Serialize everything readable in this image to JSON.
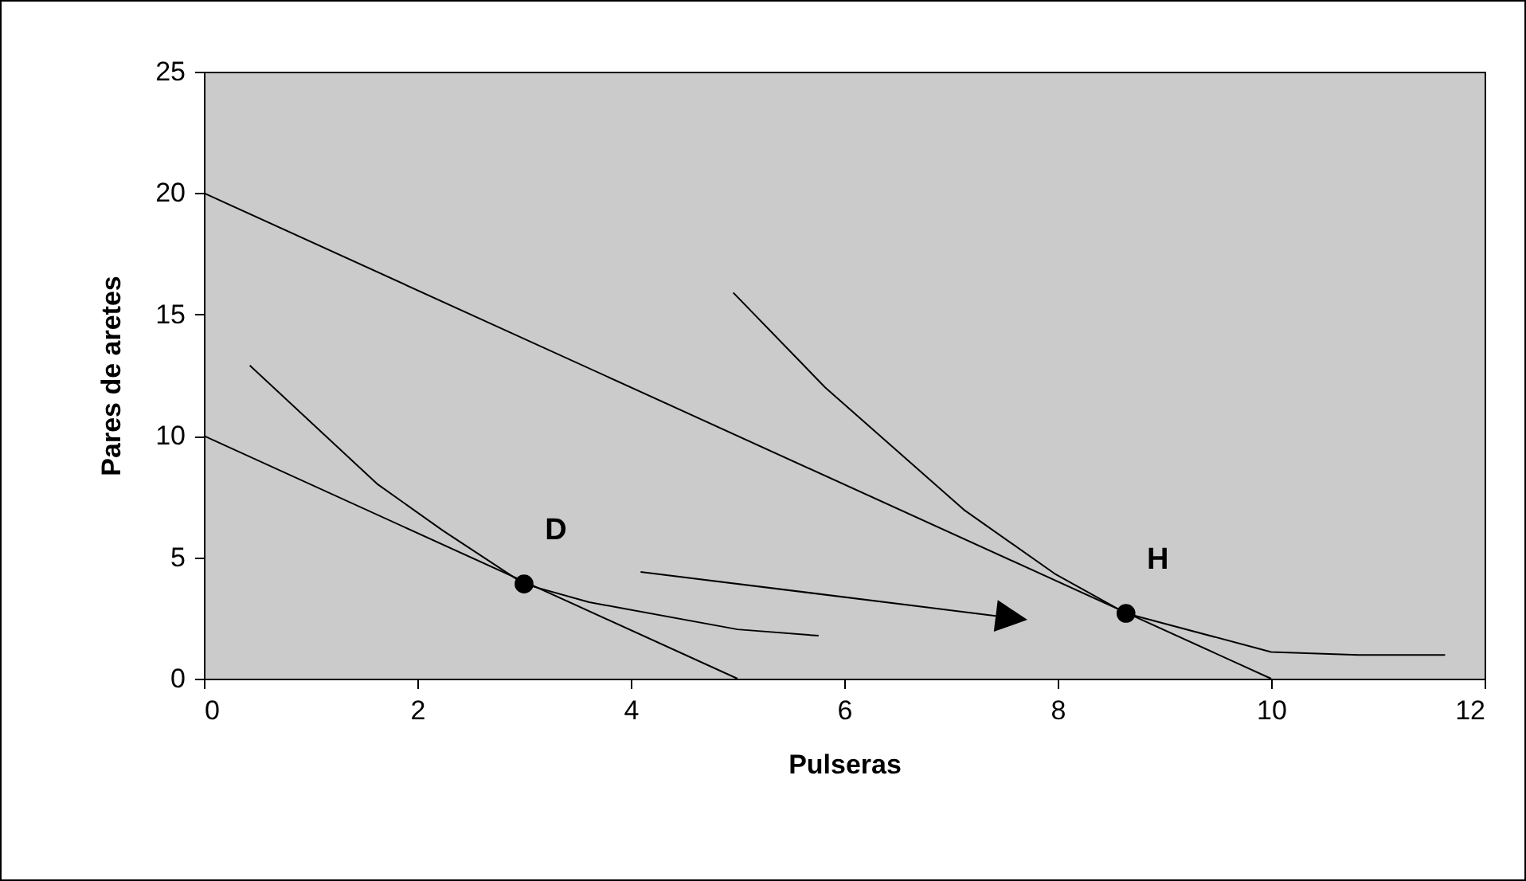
{
  "chart_data": {
    "type": "line",
    "xlabel": "Pulseras",
    "ylabel": "Pares de aretes",
    "xlim": [
      0,
      12
    ],
    "ylim": [
      0,
      25
    ],
    "xticks": [
      0,
      2,
      4,
      6,
      8,
      10,
      12
    ],
    "yticks": [
      0,
      5,
      10,
      15,
      20,
      25
    ],
    "grid": false,
    "series": [
      {
        "color": "#000000",
        "x": [
          0,
          5
        ],
        "values": [
          10,
          0
        ]
      },
      {
        "color": "#000000",
        "x": [
          0,
          10
        ],
        "values": [
          20,
          0
        ]
      },
      {
        "color": "#000000",
        "x": [
          0.43,
          1.63,
          2.24,
          3,
          3.61,
          5.0,
          5.76
        ],
        "values": [
          12.9,
          8.0,
          6.1,
          3.9,
          3.15,
          2.03,
          1.77
        ]
      },
      {
        "color": "#000000",
        "x": [
          4.96,
          5.82,
          7.12,
          7.97,
          8.64,
          10.0,
          10.82,
          11.63
        ],
        "values": [
          15.9,
          12.0,
          6.96,
          4.33,
          2.69,
          1.1,
          0.98,
          0.98
        ]
      },
      {
        "type": "scatter",
        "color": "#000000",
        "x": [
          3,
          8.64
        ],
        "values": [
          3.9,
          2.69
        ]
      }
    ],
    "annotations": [
      "D",
      "H"
    ]
  }
}
